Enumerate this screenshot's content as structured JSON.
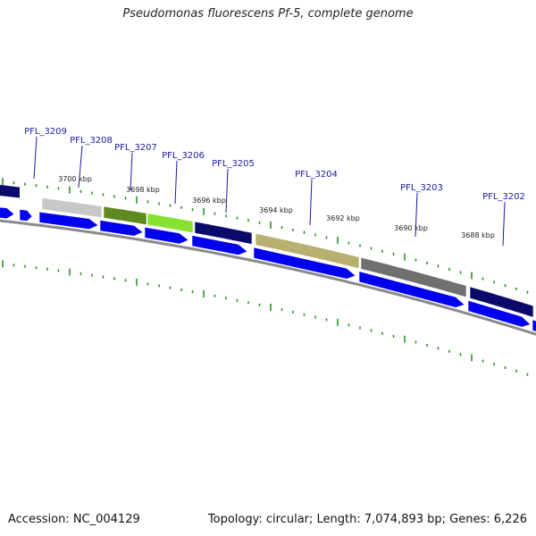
{
  "title": "Pseudomonas fluorescens Pf-5, complete genome",
  "footer": {
    "accession": "Accession: NC_004129",
    "summary": "Topology: circular; Length: 7,074,893 bp; Genes: 6,226"
  },
  "colors": {
    "forward_arrow": "#0000ee",
    "backbone": "#8a8a8a",
    "tick": "#1a8a1a",
    "label": "#1a1aa0"
  },
  "gene_labels": [
    "PFL_3209",
    "PFL_3208",
    "PFL_3207",
    "PFL_3206",
    "PFL_3205",
    "PFL_3204",
    "PFL_3203",
    "PFL_3202"
  ],
  "kbp_labels": [
    "3700 kbp",
    "3698 kbp",
    "3696 kbp",
    "3694 kbp",
    "3692 kbp",
    "3690 kbp",
    "3688 kbp"
  ],
  "genes": [
    {
      "color": "#c8c8c8"
    },
    {
      "color": "#5e8a20"
    },
    {
      "color": "#88e030"
    },
    {
      "color": "#0a0a6a"
    },
    {
      "color": "#b8b070"
    },
    {
      "color": "#707070"
    },
    {
      "color": "#0a0a6a"
    }
  ]
}
